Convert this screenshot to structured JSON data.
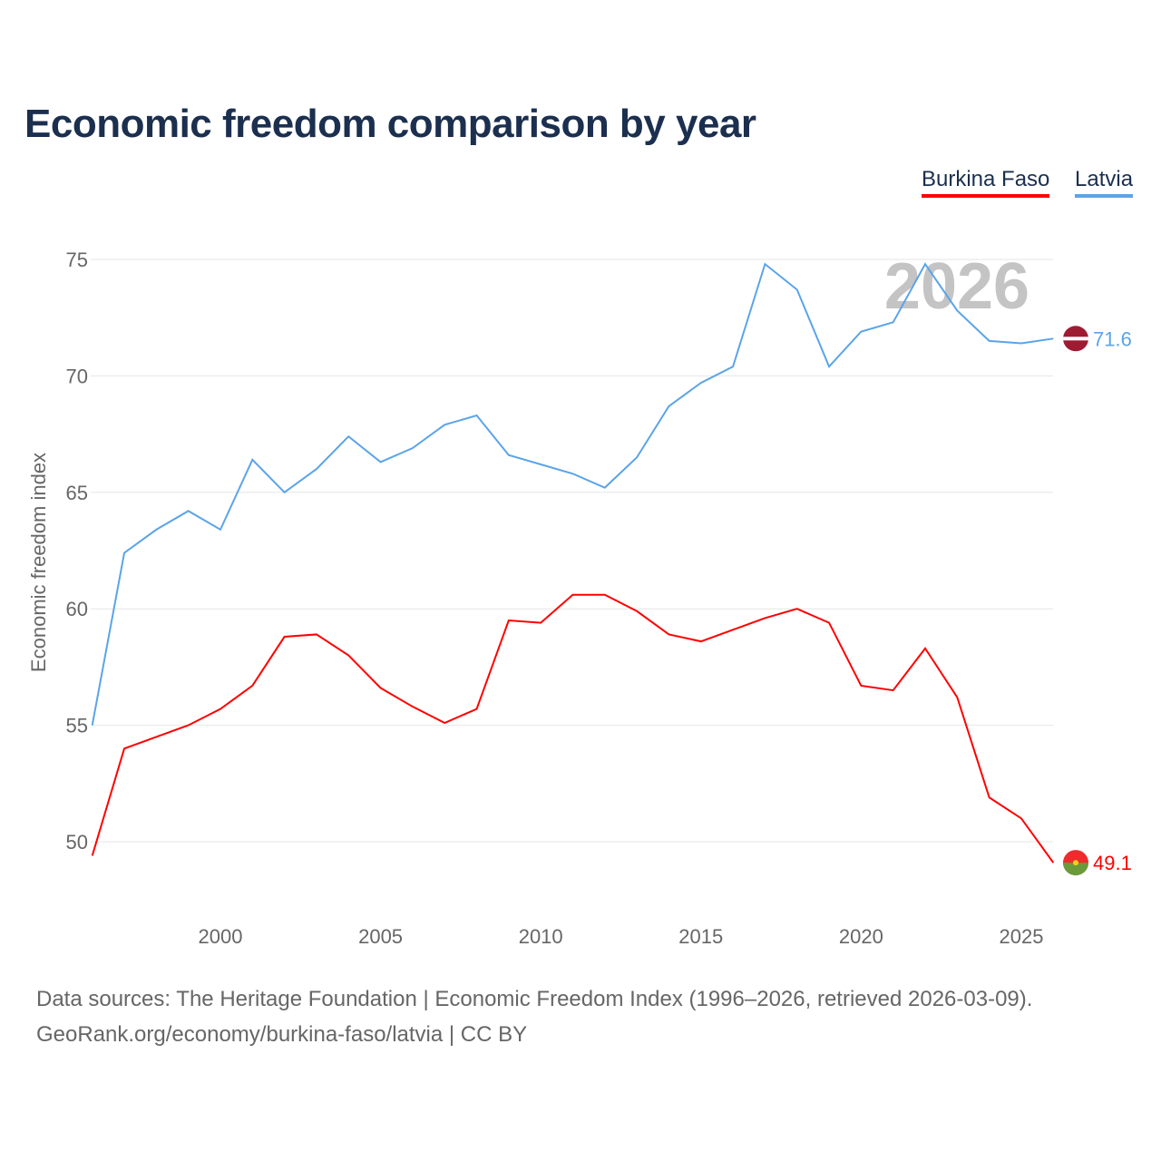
{
  "title": "Economic freedom comparison by year",
  "legend": [
    {
      "label": "Burkina Faso",
      "color": "#ff0000"
    },
    {
      "label": "Latvia",
      "color": "#5ba4e8"
    }
  ],
  "watermark_year": "2026",
  "footer": {
    "line1": "Data sources: The Heritage Foundation | Economic Freedom Index (1996–2026, retrieved 2026-03-09).",
    "line2": "GeoRank.org/economy/burkina-faso/latvia | CC BY"
  },
  "chart_data": {
    "type": "line",
    "title": "Economic freedom comparison by year",
    "xlabel": "",
    "ylabel": "Economic freedom index",
    "xlim": [
      1996,
      2026
    ],
    "ylim": [
      47.5,
      76.5
    ],
    "xticks": [
      2000,
      2005,
      2010,
      2015,
      2020,
      2025
    ],
    "yticks": [
      50,
      55,
      60,
      65,
      70,
      75
    ],
    "grid": true,
    "legend_position": "top-right",
    "x": [
      1996,
      1997,
      1998,
      1999,
      2000,
      2001,
      2002,
      2003,
      2004,
      2005,
      2006,
      2007,
      2008,
      2009,
      2010,
      2011,
      2012,
      2013,
      2014,
      2015,
      2016,
      2017,
      2018,
      2019,
      2020,
      2021,
      2022,
      2023,
      2024,
      2025,
      2026
    ],
    "series": [
      {
        "name": "Burkina Faso",
        "color": "#ff0000",
        "end_label": "49.1",
        "values": [
          49.4,
          54.0,
          54.5,
          55.0,
          55.7,
          56.7,
          58.8,
          58.9,
          58.0,
          56.6,
          55.8,
          55.1,
          55.7,
          59.5,
          59.4,
          60.6,
          60.6,
          59.9,
          58.9,
          58.6,
          59.1,
          59.6,
          60.0,
          59.4,
          56.7,
          56.5,
          58.3,
          56.2,
          51.9,
          51.0,
          49.1
        ]
      },
      {
        "name": "Latvia",
        "color": "#5ba4e8",
        "end_label": "71.6",
        "values": [
          55.0,
          62.4,
          63.4,
          64.2,
          63.4,
          66.4,
          65.0,
          66.0,
          67.4,
          66.3,
          66.9,
          67.9,
          68.3,
          66.6,
          66.2,
          65.8,
          65.2,
          66.5,
          68.7,
          69.7,
          70.4,
          74.8,
          73.7,
          70.4,
          71.9,
          72.3,
          74.8,
          72.8,
          71.5,
          71.4,
          71.6
        ]
      }
    ]
  }
}
